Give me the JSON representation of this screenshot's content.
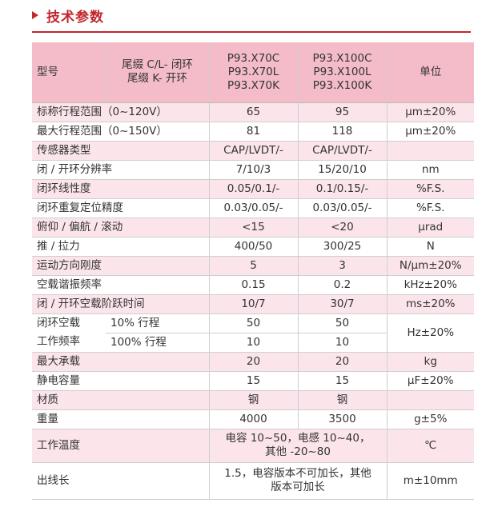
{
  "title": "技术参数",
  "table": {
    "header": {
      "model_label": "型号",
      "suffix_lines": [
        "尾缀 C/L- 闭环",
        "尾缀 K- 开环"
      ],
      "col1_models": [
        "P93.X70C",
        "P93.X70L",
        "P93.X70K"
      ],
      "col2_models": [
        "P93.X100C",
        "P93.X100L",
        "P93.X100K"
      ],
      "unit_label": "单位"
    },
    "rows": [
      {
        "label": "标称行程范围（0~120V）",
        "v1": "65",
        "v2": "95",
        "unit": "μm±20%"
      },
      {
        "label": "最大行程范围（0~150V）",
        "v1": "81",
        "v2": "118",
        "unit": "μm±20%"
      },
      {
        "label": "传感器类型",
        "v1": "CAP/LVDT/-",
        "v2": "CAP/LVDT/-",
        "unit": ""
      },
      {
        "label": "闭 / 开环分辨率",
        "v1": "7/10/3",
        "v2": "15/20/10",
        "unit": "nm"
      },
      {
        "label": "闭环线性度",
        "v1": "0.05/0.1/-",
        "v2": "0.1/0.15/-",
        "unit": "%F.S."
      },
      {
        "label": "闭环重复定位精度",
        "v1": "0.03/0.05/-",
        "v2": "0.03/0.05/-",
        "unit": "%F.S."
      },
      {
        "label": "俯仰 / 偏航 / 滚动",
        "v1": "<15",
        "v2": "<20",
        "unit": "μrad"
      },
      {
        "label": "推 / 拉力",
        "v1": "400/50",
        "v2": "300/25",
        "unit": "N"
      },
      {
        "label": "运动方向刚度",
        "v1": "5",
        "v2": "3",
        "unit": "N/μm±20%"
      },
      {
        "label": "空载谐振频率",
        "v1": "0.15",
        "v2": "0.2",
        "unit": "kHz±20%"
      },
      {
        "label": "闭 / 开环空载阶跃时间",
        "v1": "10/7",
        "v2": "30/7",
        "unit": "ms±20%"
      }
    ],
    "freq": {
      "label_lines": [
        "闭环空载",
        "工作频率"
      ],
      "sub1": "10% 行程",
      "v1a": "50",
      "v2a": "50",
      "sub2": "100% 行程",
      "v1b": "10",
      "v2b": "10",
      "unit": "Hz±20%"
    },
    "rows2": [
      {
        "label": "最大承载",
        "v1": "20",
        "v2": "20",
        "unit": "kg"
      },
      {
        "label": "静电容量",
        "v1": "15",
        "v2": "15",
        "unit": "μF±20%"
      },
      {
        "label": "材质",
        "v1": "钢",
        "v2": "钢",
        "unit": ""
      },
      {
        "label": "重量",
        "v1": "4000",
        "v2": "3500",
        "unit": "g±5%"
      }
    ],
    "temp": {
      "label": "工作温度",
      "value_lines": [
        "电容 10~50，电感 10~40，",
        "其他 -20~80"
      ],
      "unit": "℃"
    },
    "cable": {
      "label": "出线长",
      "value_lines": [
        "1.5，电容版本不可加长，其他",
        "版本可加长"
      ],
      "unit": "m±10mm"
    }
  }
}
